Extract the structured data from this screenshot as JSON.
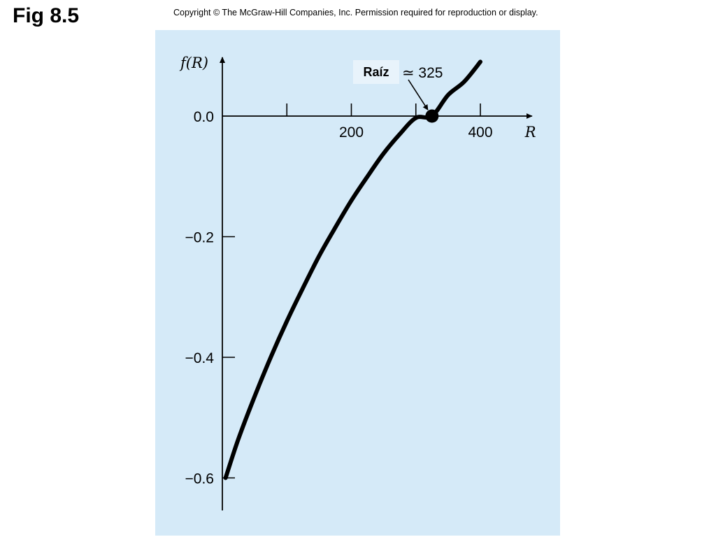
{
  "figure": {
    "title": "Fig 8.5",
    "copyright": "Copyright © The McGraw-Hill Companies, Inc. Permission required for reproduction or display."
  },
  "colors": {
    "panel_background": "#d5eaf8",
    "curve": "#000000",
    "annotation_box": "#e8f3fb"
  },
  "chart_data": {
    "type": "line",
    "title": "",
    "xlabel": "R",
    "ylabel": "f(R)",
    "xlim": [
      0,
      480
    ],
    "ylim": [
      -0.65,
      0.22
    ],
    "x_ticks": [
      100,
      200,
      300,
      400
    ],
    "x_tick_labels": [
      {
        "value": 200,
        "label": "200"
      },
      {
        "value": 400,
        "label": "400"
      }
    ],
    "y_ticks": [
      0.0,
      -0.2,
      -0.4,
      -0.6
    ],
    "y_tick_labels": [
      {
        "value": 0.0,
        "label": "0.0"
      },
      {
        "value": -0.2,
        "label": "−0.2"
      },
      {
        "value": -0.4,
        "label": "−0.4"
      },
      {
        "value": -0.6,
        "label": "−0.6"
      }
    ],
    "grid": false,
    "series": [
      {
        "x": [
          5,
          25,
          50,
          75,
          100,
          125,
          150,
          175,
          200,
          225,
          250,
          275,
          300,
          325,
          350,
          375,
          400
        ],
        "y": [
          -0.6,
          -0.535,
          -0.465,
          -0.4,
          -0.34,
          -0.285,
          -0.232,
          -0.185,
          -0.14,
          -0.1,
          -0.062,
          -0.03,
          -0.003,
          0.0,
          0.035,
          0.057,
          0.09
        ]
      }
    ],
    "root": {
      "x": 325,
      "y": 0.0
    },
    "annotation": {
      "label": "Raíz",
      "approx": "≃ 325"
    }
  }
}
